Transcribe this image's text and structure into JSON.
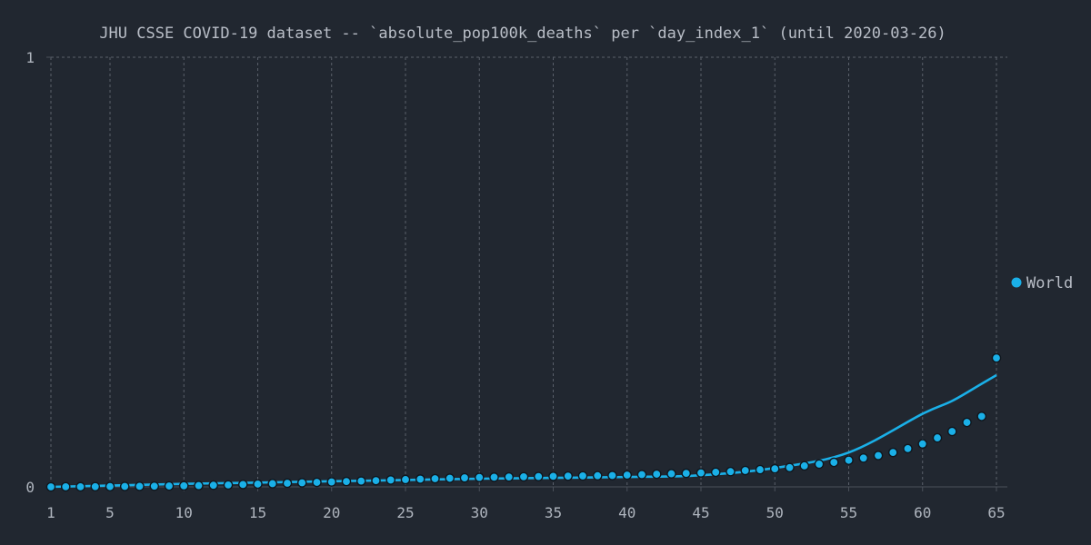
{
  "chart_data": {
    "type": "scatter",
    "title": "JHU CSSE COVID-19 dataset -- `absolute_pop100k_deaths` per `day_index_1` (until 2020-03-26)",
    "xlabel": "",
    "ylabel": "",
    "xlim": [
      1,
      65
    ],
    "ylim": [
      0,
      1
    ],
    "x_ticks": [
      1,
      5,
      10,
      15,
      20,
      25,
      30,
      35,
      40,
      45,
      50,
      55,
      60,
      65
    ],
    "y_ticks": [
      0,
      1
    ],
    "grid": true,
    "legend_position": "right",
    "series": [
      {
        "name": "World",
        "color": "#1ab0e8",
        "x": [
          1,
          2,
          3,
          4,
          5,
          6,
          7,
          8,
          9,
          10,
          11,
          12,
          13,
          14,
          15,
          16,
          17,
          18,
          19,
          20,
          21,
          22,
          23,
          24,
          25,
          26,
          27,
          28,
          29,
          30,
          31,
          32,
          33,
          34,
          35,
          36,
          37,
          38,
          39,
          40,
          41,
          42,
          43,
          44,
          45,
          46,
          47,
          48,
          49,
          50,
          51,
          52,
          53,
          54,
          55,
          56,
          57,
          58,
          59,
          60,
          61,
          62,
          63,
          64,
          65
        ],
        "y": [
          0.0,
          0.0002,
          0.0003,
          0.0005,
          0.0007,
          0.001,
          0.0013,
          0.0016,
          0.002,
          0.0025,
          0.003,
          0.0038,
          0.0045,
          0.0055,
          0.0065,
          0.0075,
          0.0085,
          0.0095,
          0.0105,
          0.0115,
          0.0125,
          0.0135,
          0.0145,
          0.016,
          0.017,
          0.018,
          0.019,
          0.02,
          0.021,
          0.022,
          0.0225,
          0.023,
          0.0235,
          0.024,
          0.0245,
          0.025,
          0.0255,
          0.026,
          0.0265,
          0.0275,
          0.0285,
          0.0295,
          0.0305,
          0.0315,
          0.0325,
          0.034,
          0.0355,
          0.038,
          0.04,
          0.042,
          0.045,
          0.049,
          0.053,
          0.057,
          0.062,
          0.067,
          0.073,
          0.08,
          0.089,
          0.1,
          0.114,
          0.129,
          0.15,
          0.164,
          0.3
        ]
      }
    ],
    "trend": {
      "type": "exponential",
      "color": "#1ab0e8",
      "x": [
        1,
        5,
        10,
        15,
        20,
        25,
        30,
        35,
        40,
        45,
        50,
        55,
        60,
        62,
        64,
        65
      ],
      "y": [
        0.0,
        0.003,
        0.007,
        0.01,
        0.013,
        0.016,
        0.019,
        0.021,
        0.023,
        0.027,
        0.044,
        0.08,
        0.17,
        0.2,
        0.24,
        0.26
      ]
    }
  }
}
